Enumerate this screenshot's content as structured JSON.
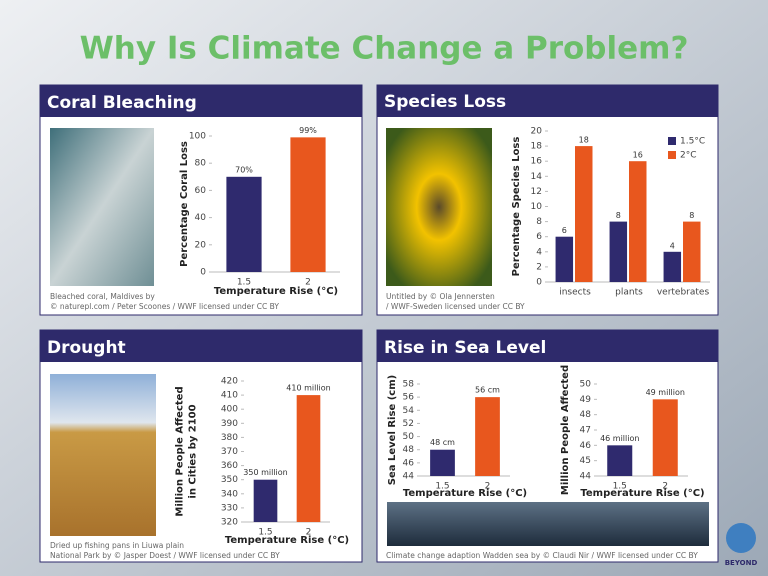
{
  "title": "Why Is Climate Change a Problem?",
  "logo": "BEYOND",
  "panels": [
    {
      "heading": "Coral Bleaching",
      "caption": [
        "Bleached coral, Maldives by",
        "© naturepl.com / Peter Scoones / WWF licensed under CC BY"
      ]
    },
    {
      "heading": "Species Loss",
      "caption": [
        "Untitled by © Ola Jennersten",
        "/ WWF-Sweden licensed under CC BY"
      ]
    },
    {
      "heading": "Drought",
      "caption": [
        "Dried up fishing pans in Liuwa plain",
        "National Park by © Jasper Doest / WWF licensed under CC BY"
      ]
    },
    {
      "heading": "Rise in Sea Level",
      "caption": [
        "Climate change adaption Wadden sea by © Claudi Nir / WWF licensed under CC BY"
      ]
    }
  ],
  "chart_data": [
    {
      "type": "bar",
      "categories": [
        "1.5",
        "2"
      ],
      "values": [
        70,
        99
      ],
      "value_labels": [
        "70%",
        "99%"
      ],
      "colors": [
        "#2f2a6e",
        "#e8571e"
      ],
      "ylim": [
        0,
        100
      ],
      "yticks": [
        0,
        20,
        40,
        60,
        80,
        100
      ],
      "ylabel": [
        "Percentage Coral Loss"
      ],
      "xlabel": "Temperature Rise (°C)"
    },
    {
      "type": "grouped_bar",
      "categories": [
        "insects",
        "plants",
        "vertebrates"
      ],
      "series": [
        {
          "name": "1.5°C",
          "color": "#2f2a6e",
          "values": [
            6,
            8,
            4
          ]
        },
        {
          "name": "2°C",
          "color": "#e8571e",
          "values": [
            18,
            16,
            8
          ]
        }
      ],
      "ylim": [
        0,
        20
      ],
      "yticks": [
        0,
        2,
        4,
        6,
        8,
        10,
        12,
        14,
        16,
        18,
        20
      ],
      "ylabel": [
        "Percentage Species Loss"
      ]
    },
    {
      "type": "bar",
      "categories": [
        "1.5",
        "2"
      ],
      "values": [
        350,
        410
      ],
      "value_labels": [
        "350 million",
        "410 million"
      ],
      "colors": [
        "#2f2a6e",
        "#e8571e"
      ],
      "ylim": [
        320,
        420
      ],
      "yticks": [
        320,
        330,
        340,
        350,
        360,
        370,
        380,
        390,
        400,
        410,
        420
      ],
      "ylabel": [
        "Million People Affected",
        "in Cities by 2100"
      ],
      "xlabel": "Temperature Rise (°C)"
    },
    {
      "type": "bar",
      "categories": [
        "1.5",
        "2"
      ],
      "values": [
        48,
        56
      ],
      "value_labels": [
        "48 cm",
        "56 cm"
      ],
      "colors": [
        "#2f2a6e",
        "#e8571e"
      ],
      "ylim": [
        44,
        58
      ],
      "yticks": [
        44,
        46,
        48,
        50,
        52,
        54,
        56,
        58
      ],
      "ylabel": [
        "Sea Level Rise (cm)"
      ],
      "xlabel": "Temperature Rise (°C)"
    },
    {
      "type": "bar",
      "categories": [
        "1.5",
        "2"
      ],
      "values": [
        46,
        49
      ],
      "value_labels": [
        "46 million",
        "49 million"
      ],
      "colors": [
        "#2f2a6e",
        "#e8571e"
      ],
      "ylim": [
        44,
        50
      ],
      "yticks": [
        44,
        45,
        46,
        47,
        48,
        49,
        50
      ],
      "ylabel": [
        "Million People Affected"
      ],
      "xlabel": "Temperature Rise (°C)"
    }
  ]
}
